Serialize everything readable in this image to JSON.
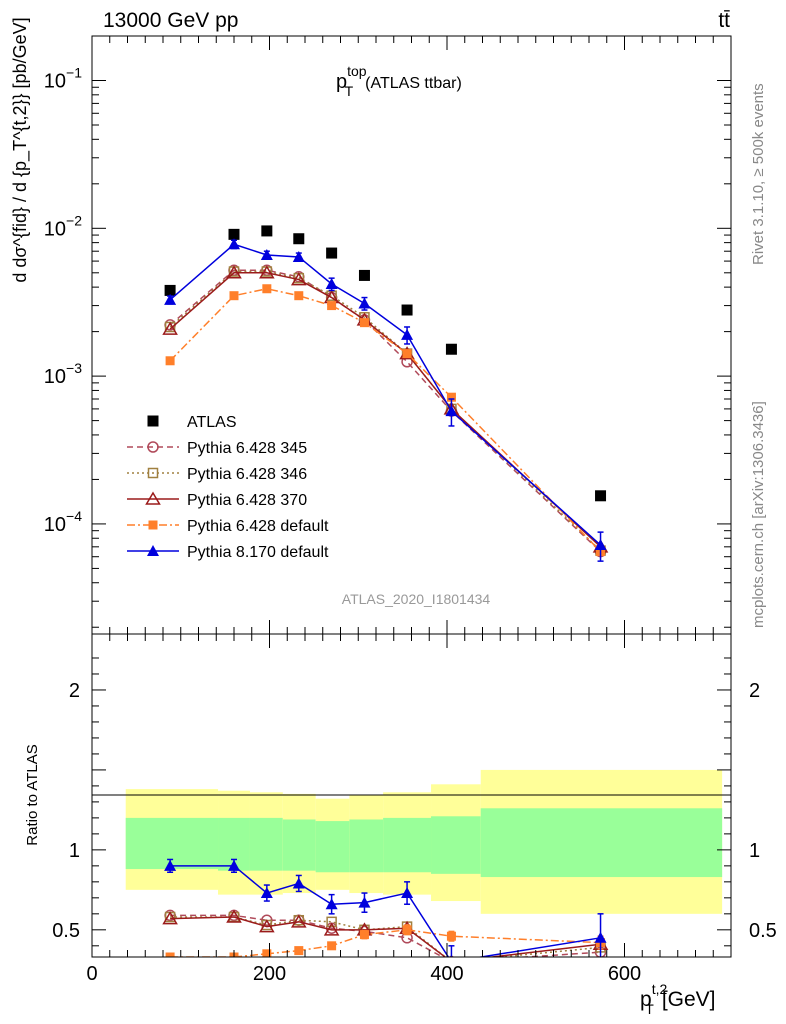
{
  "header": {
    "energy_label": "13000 GeV pp",
    "process_label": "tt̄"
  },
  "side_labels": {
    "rivet": "Rivet 3.1.10, ≥ 500k events",
    "mcplots": "mcplots.cern.ch [arXiv:1306.3436]"
  },
  "chart_data": [
    {
      "type": "scatter",
      "panel": "main",
      "title_main": "p",
      "title_sup": "top",
      "title_sub": "T",
      "title_rest": "(ATLAS ttbar)",
      "ylabel": "d dσ^{fid} / d {p_T^{t,2}} [pb/GeV]",
      "yscale": "log",
      "ylim": [
        1.8e-05,
        0.2
      ],
      "y_ticks": [
        {
          "value": 0.1,
          "base": "10",
          "exp": "−1"
        },
        {
          "value": 0.01,
          "base": "10",
          "exp": "−2"
        },
        {
          "value": 0.001,
          "base": "10",
          "exp": "−3"
        },
        {
          "value": 0.0001,
          "base": "10",
          "exp": "−4"
        }
      ],
      "xlim": [
        0,
        720
      ],
      "watermark": "ATLAS_2020_I1801434",
      "legend_position": "bottom-left",
      "series": [
        {
          "name": "ATLAS",
          "marker": "square",
          "color": "#000000",
          "line": "none",
          "x": [
            88,
            160,
            197,
            233,
            270,
            307,
            355,
            405,
            573
          ],
          "y": [
            0.0038,
            0.0091,
            0.0096,
            0.0085,
            0.0068,
            0.0048,
            0.0028,
            0.00152,
            0.000155
          ]
        },
        {
          "name": "Pythia 6.428 345",
          "marker": "circle-open",
          "color": "#b04a5a",
          "line": "dashed",
          "x": [
            88,
            160,
            197,
            233,
            270,
            307,
            355,
            405,
            573
          ],
          "y": [
            0.00222,
            0.0052,
            0.0052,
            0.0047,
            0.0034,
            0.0024,
            0.00125,
            0.00058,
            6.5e-05
          ]
        },
        {
          "name": "Pythia 6.428 346",
          "marker": "square-open",
          "color": "#a08040",
          "line": "dotted",
          "x": [
            88,
            160,
            197,
            233,
            270,
            307,
            355,
            405,
            573
          ],
          "y": [
            0.00215,
            0.0051,
            0.0051,
            0.0046,
            0.0035,
            0.0025,
            0.00142,
            0.0006,
            6.6e-05
          ]
        },
        {
          "name": "Pythia 6.428 370",
          "marker": "triangle-open",
          "color": "#9b1b1b",
          "line": "solid",
          "x": [
            88,
            160,
            197,
            233,
            270,
            307,
            355,
            405,
            573
          ],
          "y": [
            0.00208,
            0.005,
            0.005,
            0.0045,
            0.0034,
            0.0024,
            0.00142,
            0.0006,
            7e-05
          ]
        },
        {
          "name": "Pythia 6.428 default",
          "marker": "square-filled",
          "color": "#ff7f2a",
          "line": "dashdot",
          "x": [
            88,
            160,
            197,
            233,
            270,
            307,
            355,
            405,
            573
          ],
          "y": [
            0.00127,
            0.0035,
            0.0039,
            0.0035,
            0.003,
            0.0023,
            0.00142,
            0.00072,
            6.5e-05
          ]
        },
        {
          "name": "Pythia 8.170 default",
          "marker": "triangle-filled",
          "color": "#0000dd",
          "line": "solid",
          "x": [
            88,
            160,
            197,
            233,
            270,
            307,
            355,
            405,
            573
          ],
          "y": [
            0.00328,
            0.0078,
            0.0066,
            0.0064,
            0.0042,
            0.0031,
            0.0019,
            0.00058,
            7.2e-05
          ],
          "err": [
            0.0002,
            0.0005,
            0.0004,
            0.0004,
            0.0004,
            0.0003,
            0.00025,
            0.00012,
            1.6e-05
          ]
        }
      ]
    },
    {
      "type": "scatter",
      "panel": "ratio",
      "ylabel": "Ratio to ATLAS",
      "xlabel_main": "p",
      "xlabel_sup": "t,2",
      "xlabel_sub": "T",
      "xlabel_rest": "[GeV]",
      "ylim": [
        0.33,
        2.35
      ],
      "y_ticks": [
        {
          "value": 2,
          "label": "2"
        },
        {
          "value": 1,
          "label": "1"
        },
        {
          "value": 0.5,
          "label": "0.5"
        }
      ],
      "xlim": [
        0,
        720
      ],
      "x_ticks": [
        {
          "value": 0,
          "label": "0"
        },
        {
          "value": 200,
          "label": "200"
        },
        {
          "value": 400,
          "label": "400"
        },
        {
          "value": 600,
          "label": "600"
        }
      ],
      "bands": {
        "bin_edges": [
          38,
          142,
          178,
          215,
          252,
          290,
          328,
          382,
          438,
          710
        ],
        "inner_low": [
          0.88,
          0.87,
          0.87,
          0.87,
          0.86,
          0.86,
          0.86,
          0.85,
          0.83
        ],
        "inner_high": [
          1.2,
          1.2,
          1.2,
          1.19,
          1.18,
          1.19,
          1.2,
          1.21,
          1.26
        ],
        "outer_low": [
          0.75,
          0.72,
          0.72,
          0.73,
          0.75,
          0.73,
          0.72,
          0.68,
          0.6
        ],
        "outer_high": [
          1.38,
          1.37,
          1.36,
          1.35,
          1.32,
          1.34,
          1.36,
          1.41,
          1.5
        ],
        "inner_color": "#99ff99",
        "outer_color": "#ffff99"
      },
      "series": [
        {
          "name": "Pythia 6.428 345",
          "marker": "circle-open",
          "color": "#b04a5a",
          "line": "dashed",
          "x": [
            88,
            160,
            197,
            233,
            270,
            307,
            355,
            405,
            573
          ],
          "y": [
            0.59,
            0.59,
            0.56,
            0.56,
            0.51,
            0.49,
            0.45,
            0.3,
            0.36
          ]
        },
        {
          "name": "Pythia 6.428 346",
          "marker": "square-open",
          "color": "#a08040",
          "line": "dotted",
          "x": [
            88,
            160,
            197,
            233,
            270,
            307,
            355,
            405,
            573
          ],
          "y": [
            0.58,
            0.58,
            0.53,
            0.56,
            0.55,
            0.5,
            0.52,
            0.3,
            0.39
          ]
        },
        {
          "name": "Pythia 6.428 370",
          "marker": "triangle-open",
          "color": "#9b1b1b",
          "line": "solid",
          "x": [
            88,
            160,
            197,
            233,
            270,
            307,
            355,
            405,
            573
          ],
          "y": [
            0.57,
            0.58,
            0.52,
            0.55,
            0.5,
            0.5,
            0.51,
            0.3,
            0.41
          ]
        },
        {
          "name": "Pythia 6.428 default",
          "marker": "square-filled",
          "color": "#ff7f2a",
          "line": "dashdot",
          "x": [
            88,
            160,
            197,
            233,
            270,
            307,
            355,
            405,
            573
          ],
          "y": [
            0.33,
            0.33,
            0.35,
            0.37,
            0.4,
            0.47,
            0.5,
            0.46,
            0.42
          ],
          "err": [
            0.01,
            0.01,
            0.01,
            0.015,
            0.02,
            0.025,
            0.03,
            0.03,
            0.04
          ]
        },
        {
          "name": "Pythia 8.170 default",
          "marker": "triangle-filled",
          "color": "#0000dd",
          "line": "solid",
          "x": [
            88,
            160,
            197,
            233,
            270,
            307,
            355,
            405,
            573
          ],
          "y": [
            0.9,
            0.9,
            0.73,
            0.79,
            0.66,
            0.67,
            0.73,
            0.3,
            0.45
          ],
          "err": [
            0.04,
            0.04,
            0.05,
            0.05,
            0.06,
            0.06,
            0.07,
            0.1,
            0.15
          ]
        }
      ]
    }
  ]
}
